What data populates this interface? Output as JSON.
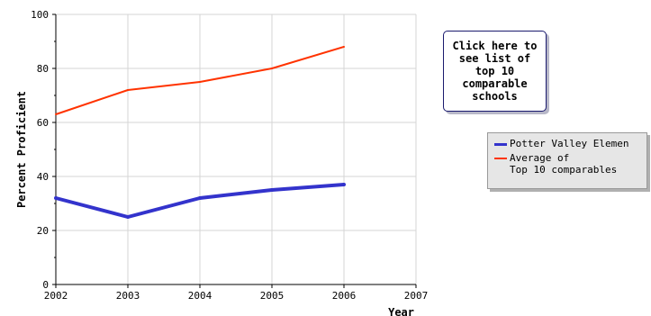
{
  "chart_data": {
    "type": "line",
    "title": "",
    "xlabel": "Year",
    "ylabel": "Percent Proficient",
    "xlim": [
      2002,
      2007
    ],
    "ylim": [
      0,
      100
    ],
    "x_ticks": [
      "2002",
      "2003",
      "2004",
      "2005",
      "2006",
      "2007"
    ],
    "y_ticks": [
      "0",
      "20",
      "40",
      "60",
      "80",
      "100"
    ],
    "grid": true,
    "legend_position": "right",
    "series": [
      {
        "name": "Potter Valley Elemen",
        "color": "#3333cc",
        "x": [
          2002,
          2003,
          2004,
          2005,
          2006
        ],
        "y": [
          32,
          25,
          32,
          35,
          37
        ]
      },
      {
        "name": "Average of\nTop 10 comparables",
        "color": "#ff3300",
        "x": [
          2002,
          2003,
          2004,
          2005,
          2006
        ],
        "y": [
          63,
          72,
          75,
          80,
          88
        ]
      }
    ]
  },
  "callout": {
    "text": "Click here to see list of top 10 comparable schools"
  }
}
